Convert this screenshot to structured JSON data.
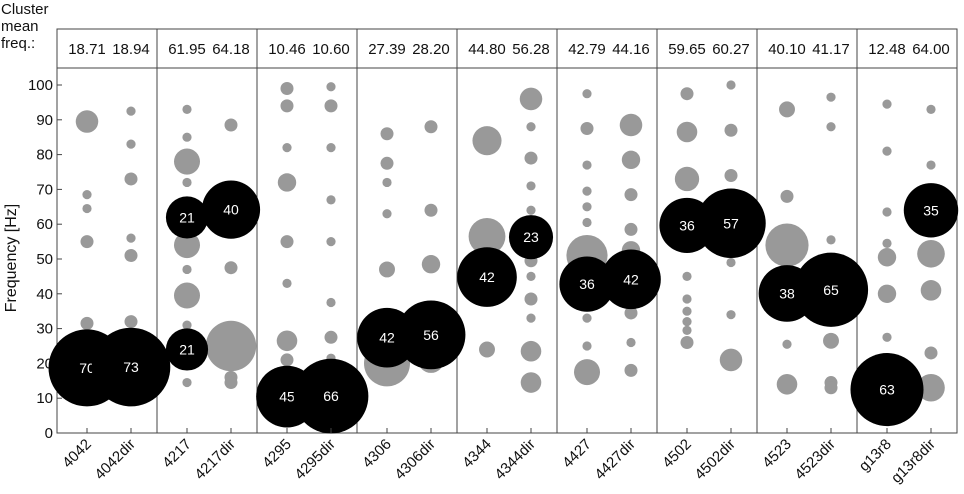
{
  "header": {
    "line1": "Cluster",
    "line2": "mean",
    "line3": "freq.:"
  },
  "chart_data": {
    "type": "scatter",
    "title": "",
    "xlabel": "",
    "ylabel": "Frequency [Hz]",
    "ylim": [
      0,
      105
    ],
    "yticks": [
      0,
      10,
      20,
      30,
      40,
      50,
      60,
      70,
      80,
      90,
      100
    ],
    "grid": false,
    "categories": [
      "4042",
      "4042dir",
      "4217",
      "4217dir",
      "4295",
      "4295dir",
      "4306",
      "4306dir",
      "4344",
      "4344dir",
      "4427",
      "4427dir",
      "4502",
      "4502dir",
      "4523",
      "4523dir",
      "g13r8",
      "g13r8dir"
    ],
    "cluster_mean_freq": [
      "18.71",
      "18.94",
      "61.95",
      "64.18",
      "10.46",
      "10.60",
      "27.39",
      "28.20",
      "44.80",
      "56.28",
      "42.79",
      "44.16",
      "59.65",
      "60.27",
      "40.10",
      "41.17",
      "12.48",
      "64.00"
    ],
    "labeled_clusters": [
      {
        "category": "4042",
        "freq": 18.71,
        "count": 70
      },
      {
        "category": "4042dir",
        "freq": 18.94,
        "count": 73
      },
      {
        "category": "4217",
        "freq": 61.95,
        "count": 21
      },
      {
        "category": "4217",
        "freq": 24,
        "count": 21
      },
      {
        "category": "4217dir",
        "freq": 64.18,
        "count": 40
      },
      {
        "category": "4295",
        "freq": 10.46,
        "count": 45
      },
      {
        "category": "4295dir",
        "freq": 10.6,
        "count": 66
      },
      {
        "category": "4306",
        "freq": 27.39,
        "count": 42
      },
      {
        "category": "4306dir",
        "freq": 28.2,
        "count": 56
      },
      {
        "category": "4344",
        "freq": 44.8,
        "count": 42
      },
      {
        "category": "4344dir",
        "freq": 56.28,
        "count": 23
      },
      {
        "category": "4427",
        "freq": 42.79,
        "count": 36
      },
      {
        "category": "4427dir",
        "freq": 44.16,
        "count": 42
      },
      {
        "category": "4502",
        "freq": 59.65,
        "count": 36
      },
      {
        "category": "4502dir",
        "freq": 60.27,
        "count": 57
      },
      {
        "category": "4523",
        "freq": 40.1,
        "count": 38
      },
      {
        "category": "4523dir",
        "freq": 41.17,
        "count": 65
      },
      {
        "category": "g13r8",
        "freq": 12.48,
        "count": 63
      },
      {
        "category": "g13r8dir",
        "freq": 64.0,
        "count": 35
      }
    ],
    "other_clusters": [
      {
        "category": "4042",
        "freq": 89.5,
        "count": 6
      },
      {
        "category": "4042",
        "freq": 68.5,
        "count": 1
      },
      {
        "category": "4042",
        "freq": 64.5,
        "count": 1
      },
      {
        "category": "4042",
        "freq": 55,
        "count": 2
      },
      {
        "category": "4042",
        "freq": 31.5,
        "count": 2
      },
      {
        "category": "4042dir",
        "freq": 92.5,
        "count": 1
      },
      {
        "category": "4042dir",
        "freq": 83,
        "count": 1
      },
      {
        "category": "4042dir",
        "freq": 73,
        "count": 2
      },
      {
        "category": "4042dir",
        "freq": 56,
        "count": 1
      },
      {
        "category": "4042dir",
        "freq": 51,
        "count": 2
      },
      {
        "category": "4042dir",
        "freq": 32,
        "count": 2
      },
      {
        "category": "4217",
        "freq": 93,
        "count": 1
      },
      {
        "category": "4217",
        "freq": 85,
        "count": 1
      },
      {
        "category": "4217",
        "freq": 78,
        "count": 8
      },
      {
        "category": "4217",
        "freq": 72,
        "count": 1
      },
      {
        "category": "4217",
        "freq": 54,
        "count": 8
      },
      {
        "category": "4217",
        "freq": 47,
        "count": 1
      },
      {
        "category": "4217",
        "freq": 39.5,
        "count": 8
      },
      {
        "category": "4217",
        "freq": 31,
        "count": 1
      },
      {
        "category": "4217",
        "freq": 14.5,
        "count": 1
      },
      {
        "category": "4217dir",
        "freq": 88.5,
        "count": 2
      },
      {
        "category": "4217dir",
        "freq": 47.5,
        "count": 2
      },
      {
        "category": "4217dir",
        "freq": 25,
        "count": 30
      },
      {
        "category": "4217dir",
        "freq": 16,
        "count": 2
      },
      {
        "category": "4217dir",
        "freq": 14.5,
        "count": 2
      },
      {
        "category": "4295",
        "freq": 99,
        "count": 2
      },
      {
        "category": "4295",
        "freq": 94,
        "count": 2
      },
      {
        "category": "4295",
        "freq": 82,
        "count": 1
      },
      {
        "category": "4295",
        "freq": 72,
        "count": 4
      },
      {
        "category": "4295",
        "freq": 55,
        "count": 2
      },
      {
        "category": "4295",
        "freq": 43,
        "count": 1
      },
      {
        "category": "4295",
        "freq": 26.5,
        "count": 5
      },
      {
        "category": "4295",
        "freq": 21,
        "count": 2
      },
      {
        "category": "4295",
        "freq": 16.5,
        "count": 1
      },
      {
        "category": "4295dir",
        "freq": 99.5,
        "count": 1
      },
      {
        "category": "4295dir",
        "freq": 94,
        "count": 2
      },
      {
        "category": "4295dir",
        "freq": 82,
        "count": 1
      },
      {
        "category": "4295dir",
        "freq": 67,
        "count": 1
      },
      {
        "category": "4295dir",
        "freq": 55,
        "count": 1
      },
      {
        "category": "4295dir",
        "freq": 37.5,
        "count": 1
      },
      {
        "category": "4295dir",
        "freq": 27.5,
        "count": 2
      },
      {
        "category": "4295dir",
        "freq": 21.5,
        "count": 1
      },
      {
        "category": "4306",
        "freq": 86,
        "count": 2
      },
      {
        "category": "4306",
        "freq": 77.5,
        "count": 2
      },
      {
        "category": "4306",
        "freq": 72,
        "count": 1
      },
      {
        "category": "4306",
        "freq": 63,
        "count": 1
      },
      {
        "category": "4306",
        "freq": 47,
        "count": 3
      },
      {
        "category": "4306",
        "freq": 20,
        "count": 25
      },
      {
        "category": "4306dir",
        "freq": 88,
        "count": 2
      },
      {
        "category": "4306dir",
        "freq": 64,
        "count": 2
      },
      {
        "category": "4306dir",
        "freq": 48.5,
        "count": 4
      },
      {
        "category": "4306dir",
        "freq": 21,
        "count": 8
      },
      {
        "category": "4344",
        "freq": 84,
        "count": 10
      },
      {
        "category": "4344",
        "freq": 56.5,
        "count": 16
      },
      {
        "category": "4344",
        "freq": 39,
        "count": 2
      },
      {
        "category": "4344",
        "freq": 24,
        "count": 3
      },
      {
        "category": "4344dir",
        "freq": 96,
        "count": 6
      },
      {
        "category": "4344dir",
        "freq": 88,
        "count": 1
      },
      {
        "category": "4344dir",
        "freq": 79,
        "count": 2
      },
      {
        "category": "4344dir",
        "freq": 71,
        "count": 1
      },
      {
        "category": "4344dir",
        "freq": 64,
        "count": 1
      },
      {
        "category": "4344dir",
        "freq": 49.5,
        "count": 2
      },
      {
        "category": "4344dir",
        "freq": 45,
        "count": 1
      },
      {
        "category": "4344dir",
        "freq": 38.5,
        "count": 2
      },
      {
        "category": "4344dir",
        "freq": 33,
        "count": 1
      },
      {
        "category": "4344dir",
        "freq": 23.5,
        "count": 5
      },
      {
        "category": "4344dir",
        "freq": 14.5,
        "count": 5
      },
      {
        "category": "4427",
        "freq": 97.5,
        "count": 1
      },
      {
        "category": "4427",
        "freq": 87.5,
        "count": 2
      },
      {
        "category": "4427",
        "freq": 77,
        "count": 1
      },
      {
        "category": "4427",
        "freq": 69.5,
        "count": 1
      },
      {
        "category": "4427",
        "freq": 65,
        "count": 1
      },
      {
        "category": "4427",
        "freq": 60.5,
        "count": 1
      },
      {
        "category": "4427",
        "freq": 51,
        "count": 20
      },
      {
        "category": "4427",
        "freq": 33,
        "count": 1
      },
      {
        "category": "4427",
        "freq": 25,
        "count": 1
      },
      {
        "category": "4427",
        "freq": 17.5,
        "count": 8
      },
      {
        "category": "4427dir",
        "freq": 88.5,
        "count": 6
      },
      {
        "category": "4427dir",
        "freq": 78.5,
        "count": 4
      },
      {
        "category": "4427dir",
        "freq": 68.5,
        "count": 2
      },
      {
        "category": "4427dir",
        "freq": 58.5,
        "count": 2
      },
      {
        "category": "4427dir",
        "freq": 52.5,
        "count": 4
      },
      {
        "category": "4427dir",
        "freq": 34.5,
        "count": 2
      },
      {
        "category": "4427dir",
        "freq": 26,
        "count": 1
      },
      {
        "category": "4427dir",
        "freq": 18,
        "count": 2
      },
      {
        "category": "4502",
        "freq": 97.5,
        "count": 2
      },
      {
        "category": "4502",
        "freq": 86.5,
        "count": 5
      },
      {
        "category": "4502",
        "freq": 73,
        "count": 7
      },
      {
        "category": "4502",
        "freq": 45,
        "count": 1
      },
      {
        "category": "4502",
        "freq": 38.5,
        "count": 1
      },
      {
        "category": "4502",
        "freq": 35,
        "count": 1
      },
      {
        "category": "4502",
        "freq": 32,
        "count": 1
      },
      {
        "category": "4502",
        "freq": 29.5,
        "count": 1
      },
      {
        "category": "4502",
        "freq": 26,
        "count": 2
      },
      {
        "category": "4502dir",
        "freq": 100,
        "count": 1
      },
      {
        "category": "4502dir",
        "freq": 87,
        "count": 2
      },
      {
        "category": "4502dir",
        "freq": 74,
        "count": 2
      },
      {
        "category": "4502dir",
        "freq": 49,
        "count": 1
      },
      {
        "category": "4502dir",
        "freq": 34,
        "count": 1
      },
      {
        "category": "4502dir",
        "freq": 21,
        "count": 6
      },
      {
        "category": "4523",
        "freq": 93,
        "count": 3
      },
      {
        "category": "4523",
        "freq": 68,
        "count": 2
      },
      {
        "category": "4523",
        "freq": 54,
        "count": 22
      },
      {
        "category": "4523",
        "freq": 25.5,
        "count": 1
      },
      {
        "category": "4523",
        "freq": 14,
        "count": 5
      },
      {
        "category": "4523dir",
        "freq": 96.5,
        "count": 1
      },
      {
        "category": "4523dir",
        "freq": 88,
        "count": 1
      },
      {
        "category": "4523dir",
        "freq": 55.5,
        "count": 1
      },
      {
        "category": "4523dir",
        "freq": 26.5,
        "count": 3
      },
      {
        "category": "4523dir",
        "freq": 14.5,
        "count": 2
      },
      {
        "category": "4523dir",
        "freq": 13,
        "count": 2
      },
      {
        "category": "g13r8",
        "freq": 94.5,
        "count": 1
      },
      {
        "category": "g13r8",
        "freq": 81,
        "count": 1
      },
      {
        "category": "g13r8",
        "freq": 63.5,
        "count": 1
      },
      {
        "category": "g13r8",
        "freq": 54.5,
        "count": 1
      },
      {
        "category": "g13r8",
        "freq": 50.5,
        "count": 4
      },
      {
        "category": "g13r8",
        "freq": 40,
        "count": 4
      },
      {
        "category": "g13r8",
        "freq": 27.5,
        "count": 1
      },
      {
        "category": "g13r8dir",
        "freq": 93,
        "count": 1
      },
      {
        "category": "g13r8dir",
        "freq": 77,
        "count": 1
      },
      {
        "category": "g13r8dir",
        "freq": 51.5,
        "count": 9
      },
      {
        "category": "g13r8dir",
        "freq": 41,
        "count": 5
      },
      {
        "category": "g13r8dir",
        "freq": 23,
        "count": 2
      },
      {
        "category": "g13r8dir",
        "freq": 13,
        "count": 9
      }
    ],
    "colors": {
      "labeled": "#000000",
      "other": "#999999",
      "axis": "#444444"
    }
  }
}
